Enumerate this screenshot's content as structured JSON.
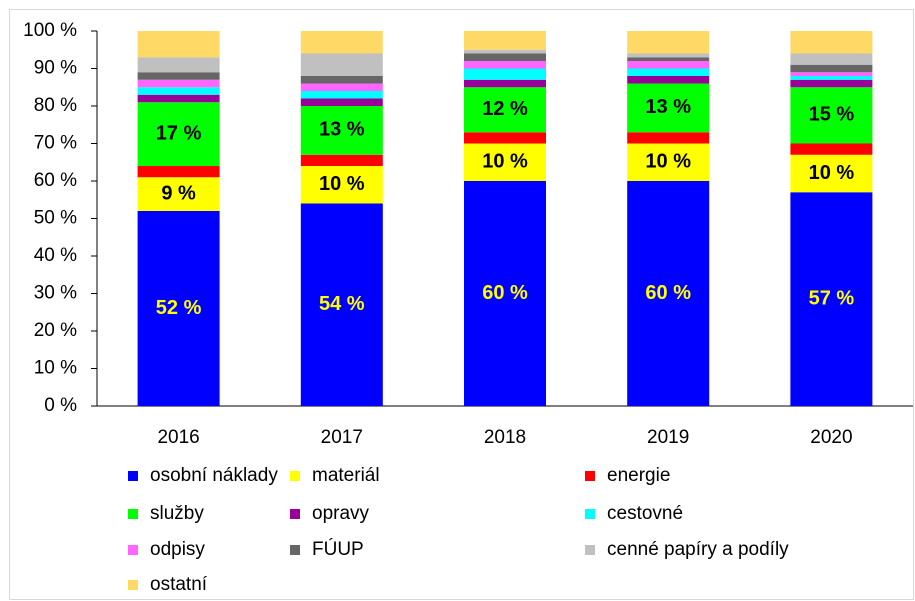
{
  "chart_data": {
    "type": "stacked_bar",
    "categories": [
      "2016",
      "2017",
      "2018",
      "2019",
      "2020"
    ],
    "ylim": [
      0,
      100
    ],
    "yticks": [
      {
        "value": 0,
        "label": "0 %"
      },
      {
        "value": 10,
        "label": "10 %"
      },
      {
        "value": 20,
        "label": "20 %"
      },
      {
        "value": 30,
        "label": "30 %"
      },
      {
        "value": 40,
        "label": "40 %"
      },
      {
        "value": 50,
        "label": "50 %"
      },
      {
        "value": 60,
        "label": "60 %"
      },
      {
        "value": 70,
        "label": "70 %"
      },
      {
        "value": 80,
        "label": "80 %"
      },
      {
        "value": 90,
        "label": "90 %"
      },
      {
        "value": 100,
        "label": "100 %"
      }
    ],
    "series": [
      {
        "name": "osobní náklady",
        "color": "#0000ff",
        "values": [
          52,
          54,
          60,
          60,
          57
        ],
        "value_labels": [
          "52 %",
          "54 %",
          "60 %",
          "60 %",
          "57 %"
        ],
        "label_color": "#ffff00"
      },
      {
        "name": "materiál",
        "color": "#ffff00",
        "values": [
          9,
          10,
          10,
          10,
          10
        ],
        "value_labels": [
          "9 %",
          "10 %",
          "10 %",
          "10 %",
          "10 %"
        ],
        "label_color": "#000000"
      },
      {
        "name": "energie",
        "color": "#ff0000",
        "values": [
          3,
          3,
          3,
          3,
          3
        ]
      },
      {
        "name": "služby",
        "color": "#00ff00",
        "values": [
          17,
          13,
          12,
          13,
          15
        ],
        "value_labels": [
          "17 %",
          "13 %",
          "12 %",
          "13 %",
          "15 %"
        ],
        "label_color": "#000000"
      },
      {
        "name": "opravy",
        "color": "#990099",
        "values": [
          2,
          2,
          2,
          2,
          2
        ]
      },
      {
        "name": "cestovné",
        "color": "#00ffff",
        "values": [
          2,
          2,
          3,
          2,
          1
        ]
      },
      {
        "name": "odpisy",
        "color": "#ff66ff",
        "values": [
          2,
          2,
          2,
          2,
          1
        ]
      },
      {
        "name": "FÚUP",
        "color": "#666666",
        "values": [
          2,
          2,
          2,
          1,
          2
        ]
      },
      {
        "name": "cenné papíry a podíly",
        "color": "#c0c0c0",
        "values": [
          4,
          6,
          1,
          1,
          3
        ]
      },
      {
        "name": "ostatní",
        "color": "#ffd966",
        "values": [
          7,
          6,
          5,
          6,
          6
        ]
      }
    ]
  }
}
